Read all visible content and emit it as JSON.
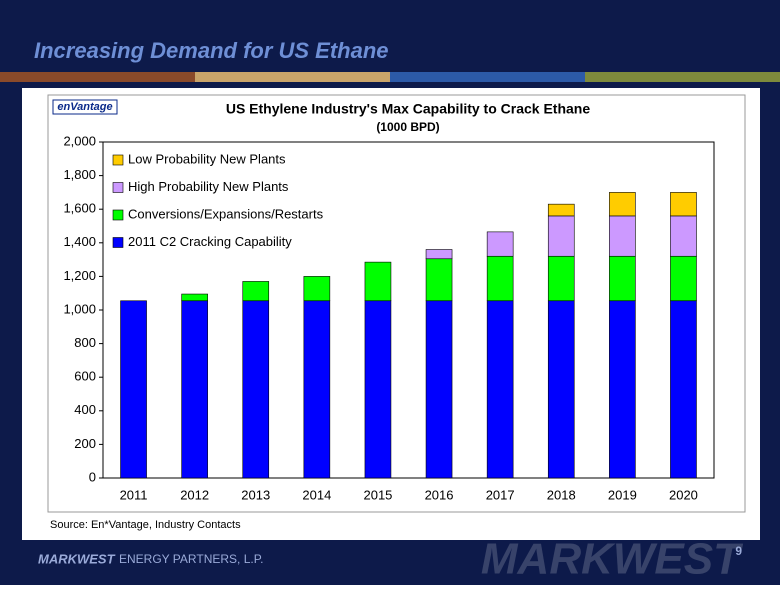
{
  "header": {
    "title": "Increasing Demand for US Ethane"
  },
  "chart_data": {
    "type": "bar",
    "stacked": true,
    "logo": "enVantage",
    "title": "US Ethylene Industry's Max Capability to Crack Ethane",
    "subtitle": "(1000 BPD)",
    "categories": [
      "2011",
      "2012",
      "2013",
      "2014",
      "2015",
      "2016",
      "2017",
      "2018",
      "2019",
      "2020"
    ],
    "series": [
      {
        "name": "2011 C2 Cracking Capability",
        "color": "#0000ff",
        "values": [
          1055,
          1055,
          1055,
          1055,
          1055,
          1055,
          1055,
          1055,
          1055,
          1055
        ]
      },
      {
        "name": "Conversions/Expansions/Restarts",
        "color": "#00ff00",
        "values": [
          0,
          40,
          115,
          145,
          230,
          250,
          265,
          265,
          265,
          265
        ]
      },
      {
        "name": "High Probability New Plants",
        "color": "#cc99ff",
        "values": [
          0,
          0,
          0,
          0,
          0,
          55,
          145,
          240,
          240,
          240
        ]
      },
      {
        "name": "Low Probability New Plants",
        "color": "#ffcc00",
        "values": [
          0,
          0,
          0,
          0,
          0,
          0,
          0,
          70,
          140,
          140
        ]
      }
    ],
    "ylim": [
      0,
      2000
    ],
    "yticks": [
      0,
      200,
      400,
      600,
      800,
      {
        "value": 1000,
        "label": "1,000"
      },
      {
        "value": 1200,
        "label": "1,200"
      },
      {
        "value": 1400,
        "label": "1,400"
      },
      {
        "value": 1600,
        "label": "1,600"
      },
      {
        "value": 1800,
        "label": "1,800"
      },
      {
        "value": 2000,
        "label": "2,000"
      }
    ],
    "legend": "top-left"
  },
  "source": "Source: En*Vantage, Industry Contacts",
  "footer": {
    "brand": "MARKWEST",
    "company": "ENERGY PARTNERS, L.P.",
    "watermark": "MARKWEST",
    "page": "9"
  }
}
